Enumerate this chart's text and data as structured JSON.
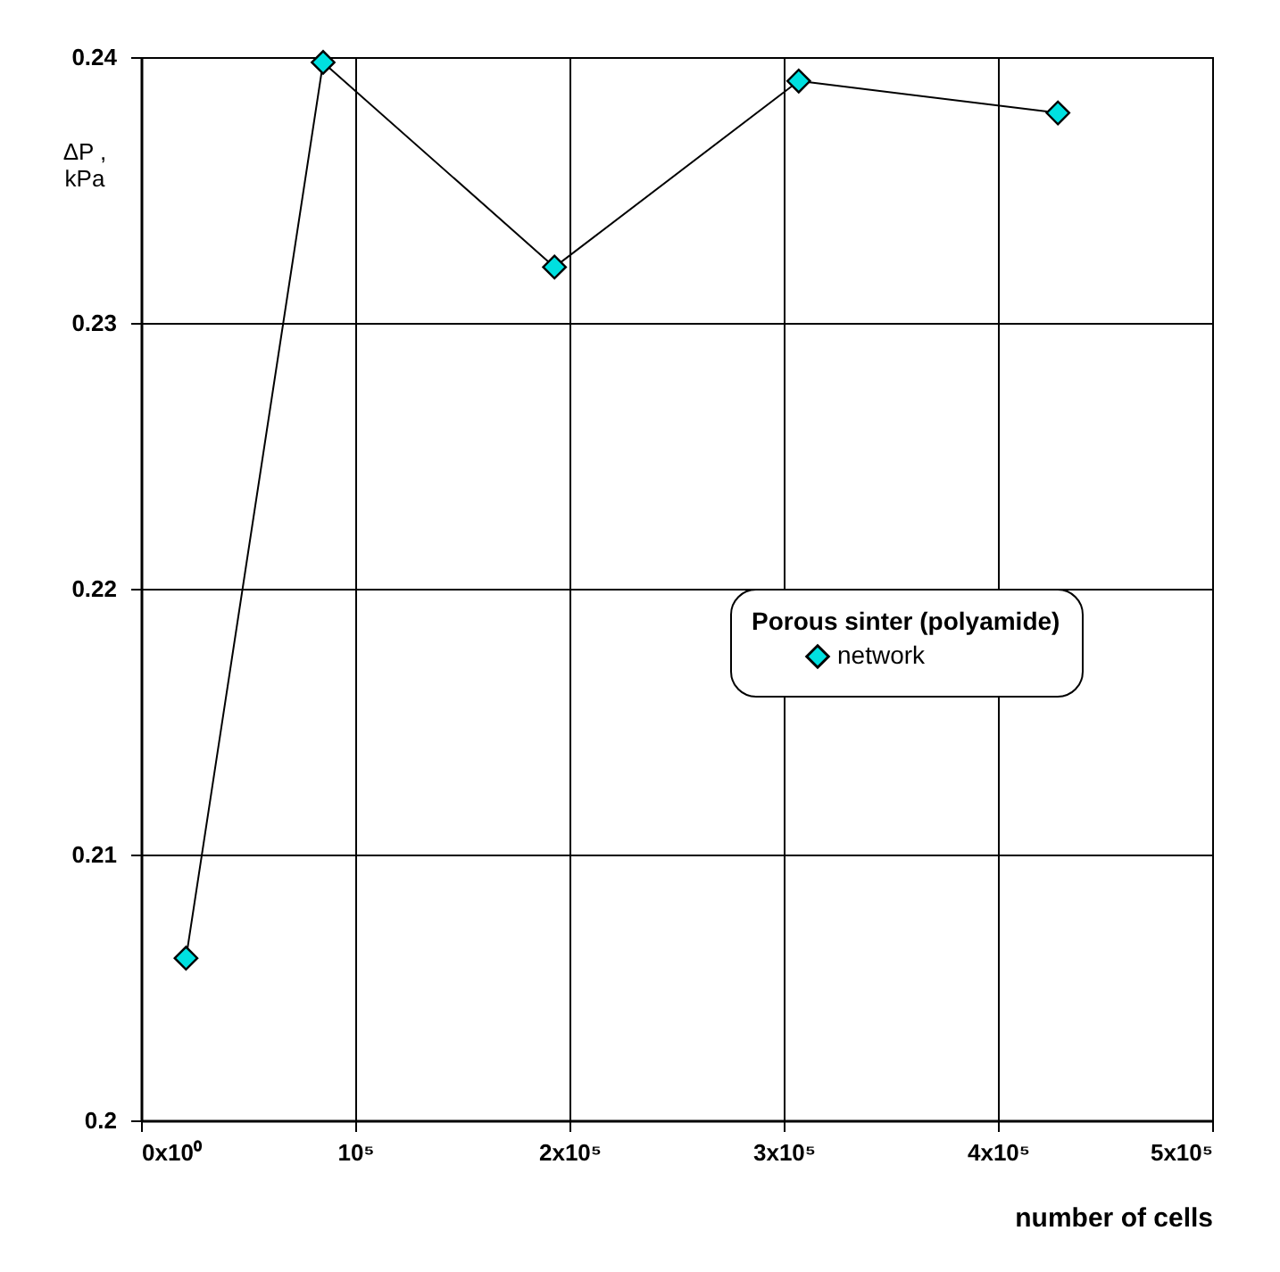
{
  "chart_data": {
    "type": "line",
    "xlabel": "number of cells",
    "ylabel": "ΔP ,\nkPa",
    "legend_title": "Porous sinter (polyamide)",
    "x": [
      21000,
      85000,
      193000,
      307000,
      428000
    ],
    "series": [
      {
        "name": "network",
        "color": "#00e0e0",
        "values": [
          0.2061,
          0.2398,
          0.2321,
          0.2391,
          0.2379
        ]
      }
    ],
    "xlim": [
      0,
      500000
    ],
    "ylim": [
      0.2,
      0.24
    ],
    "xticks": [
      {
        "value": 0,
        "label": "0x10⁰"
      },
      {
        "value": 100000,
        "label": "10⁵"
      },
      {
        "value": 200000,
        "label": "2x10⁵"
      },
      {
        "value": 300000,
        "label": "3x10⁵"
      },
      {
        "value": 400000,
        "label": "4x10⁵"
      },
      {
        "value": 500000,
        "label": "5x10⁵"
      }
    ],
    "yticks": [
      0.2,
      0.21,
      0.22,
      0.23,
      0.24
    ],
    "grid": true,
    "legend": "right",
    "marker": "diamond",
    "line_style": "solid"
  }
}
